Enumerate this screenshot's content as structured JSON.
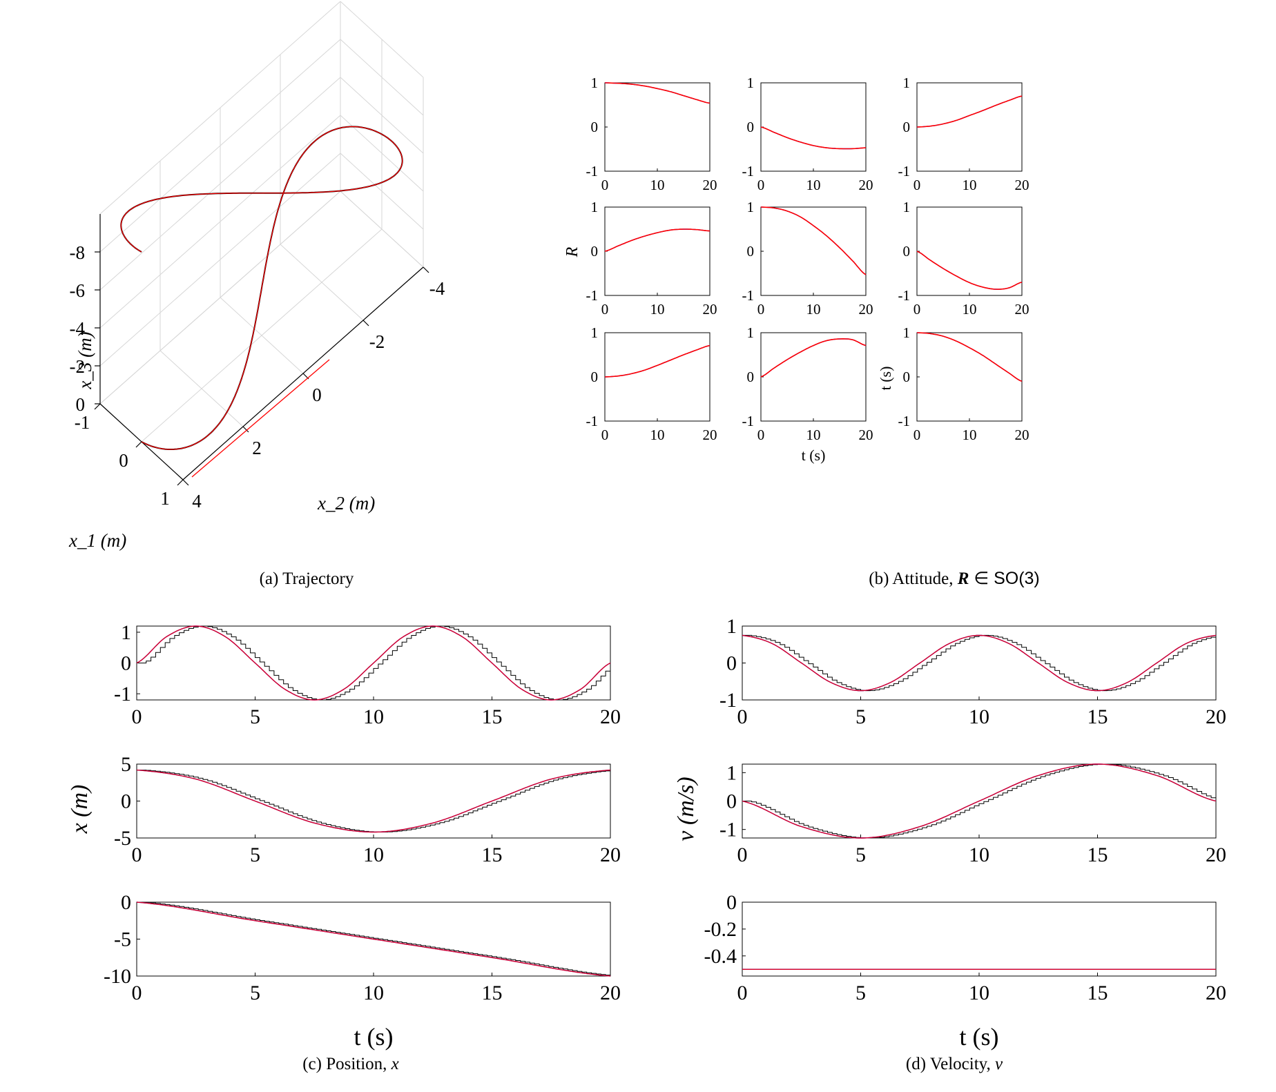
{
  "captions": {
    "a": "(a)  Trajectory",
    "b_prefix": "(b)  Attitude, ",
    "b_math": "R",
    "b_suffix": " ∈ SO(3)",
    "c_prefix": "(c)  Position, ",
    "c_math": "x",
    "d_prefix": "(d)  Velocity, ",
    "d_math": "v"
  },
  "colors": {
    "reference": "#ff0000",
    "estimate": "#0000ff",
    "measured": "#000000",
    "grid": "#d6d6d6"
  },
  "chart_data": [
    {
      "id": "trajectory",
      "type": "line3d",
      "xlabel": "x_1 (m)",
      "ylabel": "x_2 (m)",
      "zlabel": "x_3 (m)",
      "x1_ticks": [
        "-1",
        "0",
        "1"
      ],
      "x2_ticks": [
        "4",
        "2",
        "0",
        "-2",
        "-4"
      ],
      "x3_ticks": [
        "0",
        "-2",
        "-4",
        "-6",
        "-8"
      ],
      "curve": "figure-eight lemniscate, x2 from 4 to -4, rising to x3 = -10",
      "series": [
        {
          "name": "",
          "color": "#ff0000"
        },
        {
          "name": "",
          "color": "#000000"
        }
      ]
    },
    {
      "id": "attitude",
      "type": "line",
      "ylabel": "R",
      "xlabel": "t (s)",
      "extra_label": "t (s)",
      "xlim": [
        0,
        20
      ],
      "ylim": [
        -1,
        1
      ],
      "xticks": [
        "0",
        "10",
        "20"
      ],
      "yticks": [
        "1",
        "0",
        "-1"
      ],
      "t": [
        0,
        2.5,
        5,
        7.5,
        10,
        12.5,
        15,
        17.5,
        20
      ],
      "panels": [
        {
          "name": "R11",
          "values": [
            1.0,
            0.99,
            0.97,
            0.93,
            0.87,
            0.8,
            0.71,
            0.62,
            0.54
          ]
        },
        {
          "name": "R12",
          "values": [
            0.0,
            -0.12,
            -0.24,
            -0.34,
            -0.42,
            -0.47,
            -0.49,
            -0.49,
            -0.47
          ]
        },
        {
          "name": "R13",
          "values": [
            0.0,
            0.02,
            0.07,
            0.15,
            0.26,
            0.37,
            0.49,
            0.6,
            0.7
          ]
        },
        {
          "name": "R21",
          "values": [
            0.0,
            0.12,
            0.24,
            0.34,
            0.42,
            0.48,
            0.5,
            0.49,
            0.46
          ]
        },
        {
          "name": "R22",
          "values": [
            1.0,
            0.98,
            0.91,
            0.78,
            0.58,
            0.35,
            0.08,
            -0.22,
            -0.53
          ]
        },
        {
          "name": "R23",
          "values": [
            0.0,
            -0.2,
            -0.39,
            -0.56,
            -0.71,
            -0.81,
            -0.86,
            -0.83,
            -0.7
          ]
        },
        {
          "name": "R31",
          "values": [
            0.0,
            0.02,
            0.07,
            0.15,
            0.26,
            0.38,
            0.5,
            0.61,
            0.71
          ]
        },
        {
          "name": "R32",
          "values": [
            0.0,
            0.2,
            0.39,
            0.56,
            0.71,
            0.82,
            0.86,
            0.84,
            0.71
          ]
        },
        {
          "name": "R33",
          "values": [
            1.0,
            0.98,
            0.92,
            0.81,
            0.66,
            0.49,
            0.29,
            0.09,
            -0.1
          ]
        }
      ]
    },
    {
      "id": "position",
      "type": "line",
      "ylabel": "x (m)",
      "xlabel": "t (s)",
      "xlim": [
        0,
        20
      ],
      "xticks": [
        "0",
        "5",
        "10",
        "15",
        "20"
      ],
      "panels": [
        {
          "name": "x1",
          "ylim": [
            -1.2,
            1.2
          ],
          "yticks": [
            "1",
            "0",
            "-1"
          ],
          "t": [
            0,
            1.25,
            2.5,
            3.75,
            5,
            6.25,
            7.5,
            8.75,
            10,
            11.25,
            12.5,
            13.75,
            15,
            16.25,
            17.5,
            18.75,
            20
          ],
          "values": [
            0,
            0.85,
            1.2,
            0.85,
            0,
            -0.85,
            -1.2,
            -0.85,
            0,
            0.85,
            1.2,
            0.85,
            0,
            -0.85,
            -1.2,
            -0.85,
            0
          ]
        },
        {
          "name": "x2",
          "ylim": [
            -5,
            5
          ],
          "yticks": [
            "5",
            "0",
            "-5"
          ],
          "t": [
            0,
            2.5,
            5,
            7.5,
            10,
            12.5,
            15,
            17.5,
            20
          ],
          "values": [
            4.2,
            2.97,
            0,
            -2.97,
            -4.2,
            -2.97,
            0,
            2.97,
            4.2
          ]
        },
        {
          "name": "x3",
          "ylim": [
            -10,
            0
          ],
          "yticks": [
            "0",
            "-5",
            "-10"
          ],
          "t": [
            0,
            5,
            10,
            15,
            20
          ],
          "values": [
            0,
            -2.5,
            -5,
            -7.5,
            -10
          ]
        }
      ]
    },
    {
      "id": "velocity",
      "type": "line",
      "ylabel": "v (m/s)",
      "xlabel": "t (s)",
      "xlim": [
        0,
        20
      ],
      "xticks": [
        "0",
        "5",
        "10",
        "15",
        "20"
      ],
      "panels": [
        {
          "name": "v1",
          "ylim": [
            -1,
            1
          ],
          "yticks": [
            "1",
            "0",
            "-1"
          ],
          "t": [
            0,
            1.25,
            2.5,
            3.75,
            5,
            6.25,
            7.5,
            8.75,
            10,
            11.25,
            12.5,
            13.75,
            15,
            16.25,
            17.5,
            18.75,
            20
          ],
          "values": [
            0.75,
            0.53,
            0,
            -0.53,
            -0.75,
            -0.53,
            0,
            0.53,
            0.75,
            0.53,
            0,
            -0.53,
            -0.75,
            -0.53,
            0,
            0.53,
            0.75
          ]
        },
        {
          "name": "v2",
          "ylim": [
            -1.3,
            1.3
          ],
          "yticks": [
            "1",
            "0",
            "-1"
          ],
          "t": [
            0,
            2.5,
            5,
            7.5,
            10,
            12.5,
            15,
            17.5,
            20
          ],
          "values": [
            0,
            -0.9,
            -1.3,
            -0.9,
            0,
            0.9,
            1.3,
            0.9,
            0
          ]
        },
        {
          "name": "v3",
          "ylim": [
            -0.55,
            0
          ],
          "yticks": [
            "0",
            "-0.2",
            "-0.4"
          ],
          "t": [
            0,
            0.5,
            20
          ],
          "values": [
            -0.5,
            -0.5,
            -0.5
          ]
        }
      ]
    }
  ]
}
